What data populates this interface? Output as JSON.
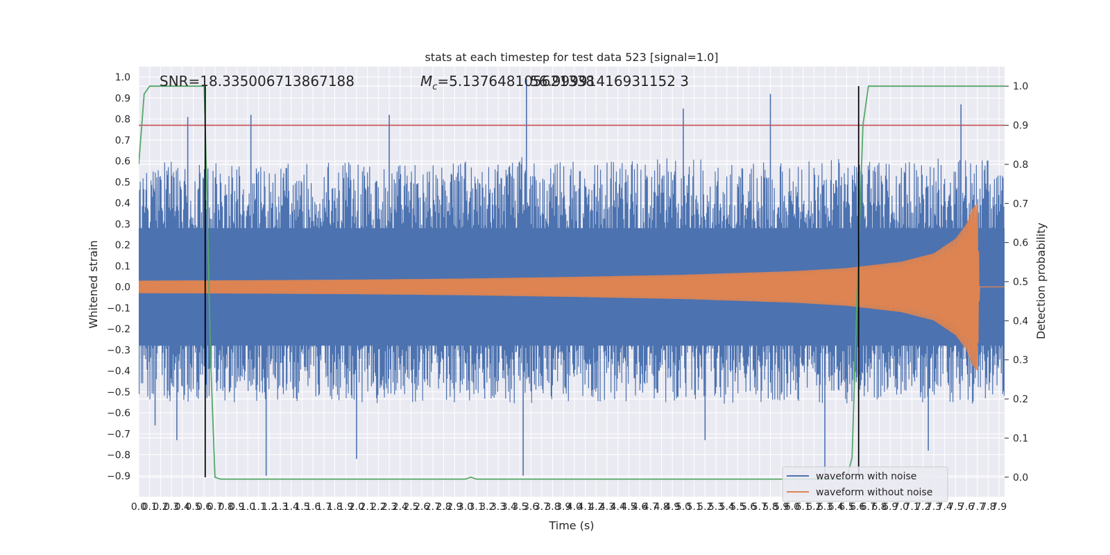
{
  "chart_data": {
    "type": "line",
    "title": "stats at each timestep for test data 523 [signal=1.0]",
    "xlabel": "Time (s)",
    "ylabel": "Whitened strain",
    "y2label": "Detection probability",
    "xlim": [
      0.0,
      7.95
    ],
    "ylim": [
      -1.0,
      1.05
    ],
    "y2lim": [
      -0.05,
      1.05
    ],
    "x_ticks": [
      0.0,
      0.1,
      0.2,
      0.3,
      0.4,
      0.5,
      0.6,
      0.7,
      0.8,
      0.9,
      1.0,
      1.1,
      1.2,
      1.3,
      1.4,
      1.5,
      1.6,
      1.7,
      1.8,
      1.9,
      2.0,
      2.1,
      2.2,
      2.3,
      2.4,
      2.5,
      2.6,
      2.7,
      2.8,
      2.9,
      3.0,
      3.1,
      3.2,
      3.3,
      3.4,
      3.5,
      3.6,
      3.7,
      3.8,
      3.9,
      4.0,
      4.1,
      4.2,
      4.3,
      4.4,
      4.5,
      4.6,
      4.7,
      4.8,
      4.9,
      5.0,
      5.1,
      5.2,
      5.3,
      5.4,
      5.5,
      5.6,
      5.7,
      5.8,
      5.9,
      6.0,
      6.1,
      6.2,
      6.3,
      6.4,
      6.5,
      6.6,
      6.7,
      6.8,
      6.9,
      7.0,
      7.1,
      7.2,
      7.3,
      7.4,
      7.5,
      7.6,
      7.7,
      7.8,
      7.9
    ],
    "x_tick_labels": [
      "0.0",
      "0.1",
      "0.2",
      "0.3",
      "0.4",
      "0.5",
      "0.6",
      "0.7",
      "0.8",
      "0.9",
      "1.0",
      "1.1",
      "1.2",
      "1.3",
      "1.4",
      "1.5",
      "1.6",
      "1.7",
      "1.8",
      "1.9",
      "2.0",
      "2.1",
      "2.2",
      "2.3",
      "2.4",
      "2.5",
      "2.6",
      "2.7",
      "2.8",
      "2.9",
      "3.0",
      "3.1",
      "3.2",
      "3.3",
      "3.4",
      "3.5",
      "3.6",
      "3.7",
      "3.8",
      "3.9",
      "4.0",
      "4.1",
      "4.2",
      "4.3",
      "4.4",
      "4.5",
      "4.6",
      "4.7",
      "4.8",
      "4.9",
      "5.0",
      "5.1",
      "5.2",
      "5.3",
      "5.4",
      "5.5",
      "5.6",
      "5.7",
      "5.8",
      "5.9",
      "6.0",
      "6.1",
      "6.2",
      "6.3",
      "6.4",
      "6.5",
      "6.6",
      "6.7",
      "6.8",
      "6.9",
      "7.0",
      "7.1",
      "7.2",
      "7.3",
      "7.4",
      "7.5",
      "7.6",
      "7.7",
      "7.8",
      "7.9"
    ],
    "y_ticks": [
      1.0,
      0.9,
      0.8,
      0.7,
      0.6,
      0.5,
      0.4,
      0.3,
      0.2,
      0.1,
      0.0,
      -0.1,
      -0.2,
      -0.3,
      -0.4,
      -0.5,
      -0.6,
      -0.7,
      -0.8,
      -0.9
    ],
    "y_tick_labels": [
      "1.0",
      "0.9",
      "0.8",
      "0.7",
      "0.6",
      "0.5",
      "0.4",
      "0.3",
      "0.2",
      "0.1",
      "0.0",
      "−0.1",
      "−0.2",
      "−0.3",
      "−0.4",
      "−0.5",
      "−0.6",
      "−0.7",
      "−0.8",
      "−0.9"
    ],
    "y2_ticks": [
      1.0,
      0.9,
      0.8,
      0.7,
      0.6,
      0.5,
      0.4,
      0.3,
      0.2,
      0.1,
      0.0
    ],
    "y2_tick_labels": [
      "1.0",
      "0.9",
      "0.8",
      "0.7",
      "0.6",
      "0.5",
      "0.4",
      "0.3",
      "0.2",
      "0.1",
      "0.0"
    ],
    "grid": true,
    "legend_position": "lower-right",
    "series": [
      {
        "name": "waveform with noise",
        "color": "#4c72b0",
        "axis": "left",
        "envelope": {
          "x": [
            0.0,
            0.5,
            1.0,
            1.5,
            2.0,
            2.5,
            3.0,
            3.5,
            4.0,
            4.5,
            5.0,
            5.5,
            6.0,
            6.5,
            7.0,
            7.5,
            7.95
          ],
          "upper": [
            0.62,
            0.6,
            0.58,
            0.6,
            0.6,
            0.58,
            0.6,
            0.62,
            0.6,
            0.6,
            0.62,
            0.6,
            0.6,
            0.62,
            0.6,
            0.62,
            0.6
          ],
          "lower": [
            -0.55,
            -0.55,
            -0.56,
            -0.55,
            -0.55,
            -0.56,
            -0.55,
            -0.56,
            -0.55,
            -0.56,
            -0.55,
            -0.56,
            -0.55,
            -0.56,
            -0.55,
            -0.56,
            -0.55
          ]
        },
        "peaks": [
          {
            "x": 0.45,
            "y": 0.81
          },
          {
            "x": 1.03,
            "y": 0.82
          },
          {
            "x": 2.3,
            "y": 0.82
          },
          {
            "x": 3.56,
            "y": 0.99
          },
          {
            "x": 5.0,
            "y": 0.85
          },
          {
            "x": 5.8,
            "y": 0.92
          },
          {
            "x": 7.55,
            "y": 0.87
          },
          {
            "x": 0.15,
            "y": -0.66
          },
          {
            "x": 0.35,
            "y": -0.73
          },
          {
            "x": 1.17,
            "y": -0.9
          },
          {
            "x": 2.0,
            "y": -0.82
          },
          {
            "x": 3.53,
            "y": -0.9
          },
          {
            "x": 5.2,
            "y": -0.73
          },
          {
            "x": 6.3,
            "y": -0.9
          },
          {
            "x": 7.25,
            "y": -0.78
          }
        ]
      },
      {
        "name": "waveform without noise",
        "color": "#dd8452",
        "axis": "left",
        "envelope": {
          "x": [
            0.0,
            1.0,
            2.0,
            3.0,
            4.0,
            5.0,
            6.0,
            6.5,
            7.0,
            7.3,
            7.5,
            7.6,
            7.65,
            7.7,
            7.72,
            7.95
          ],
          "amplitude": [
            0.03,
            0.032,
            0.035,
            0.04,
            0.048,
            0.058,
            0.075,
            0.09,
            0.12,
            0.16,
            0.23,
            0.3,
            0.37,
            0.4,
            0.0,
            0.0
          ]
        }
      },
      {
        "name": "Detection probability",
        "color": "#55a868",
        "axis": "right",
        "x": [
          0.0,
          0.05,
          0.1,
          0.6,
          0.62,
          0.66,
          0.7,
          0.75,
          3.0,
          3.05,
          3.1,
          6.5,
          6.55,
          6.6,
          6.65,
          6.7,
          7.95
        ],
        "y": [
          0.8,
          0.98,
          1.0,
          1.0,
          0.8,
          0.3,
          0.0,
          -0.005,
          -0.005,
          0.0,
          -0.005,
          -0.005,
          0.05,
          0.5,
          0.9,
          1.0,
          1.0
        ]
      }
    ],
    "threshold": {
      "y2": 0.9,
      "color": "#c44e52"
    },
    "markers": {
      "x": [
        0.61,
        6.61
      ],
      "color": "#000000"
    },
    "annotations": {
      "snr": "SNR=18.335006713867188",
      "mc_symbol": "M",
      "mc_subscript": "c",
      "mc_value": "=5.137648105621338",
      "overlap": "56.99991416931152 3"
    }
  }
}
